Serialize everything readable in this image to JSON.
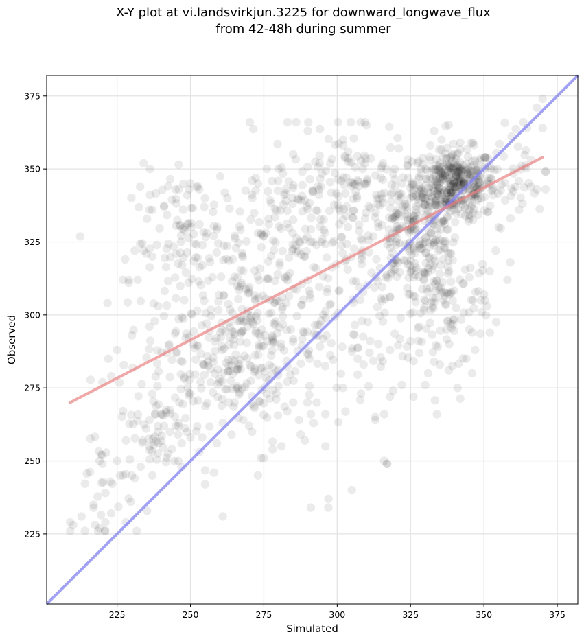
{
  "chart_data": {
    "type": "scatter",
    "title": "X-Y plot at vi.landsvirkjun.3225 for downward_longwave_flux",
    "subtitle": "from 42-48h during summer",
    "xlabel": "Simulated",
    "ylabel": "Observed",
    "xlim": [
      201,
      382
    ],
    "ylim": [
      201,
      382
    ],
    "xticks": [
      225,
      250,
      275,
      300,
      325,
      350,
      375
    ],
    "yticks": [
      225,
      250,
      275,
      300,
      325,
      350,
      375
    ],
    "grid": true,
    "legend": "none",
    "colors": {
      "points": "#000000",
      "regression_line": "#f08080",
      "identity_line": "#8080ff"
    },
    "regression_line": {
      "x": [
        209,
        370
      ],
      "y": [
        270,
        354
      ]
    },
    "identity_line": {
      "x": [
        201,
        382
      ],
      "y": [
        201,
        382
      ]
    },
    "clusters": [
      {
        "cx": 340,
        "cy": 345,
        "sx": 7,
        "sy": 6,
        "n": 380
      },
      {
        "cx": 326,
        "cy": 328,
        "sx": 8,
        "sy": 9,
        "n": 200
      },
      {
        "cx": 335,
        "cy": 305,
        "sx": 9,
        "sy": 12,
        "n": 120
      },
      {
        "cx": 262,
        "cy": 284,
        "sx": 12,
        "sy": 10,
        "n": 170
      },
      {
        "cx": 275,
        "cy": 300,
        "sx": 14,
        "sy": 12,
        "n": 130
      },
      {
        "cx": 250,
        "cy": 325,
        "sx": 10,
        "sy": 12,
        "n": 110
      },
      {
        "cx": 290,
        "cy": 330,
        "sx": 17,
        "sy": 15,
        "n": 200
      },
      {
        "cx": 305,
        "cy": 345,
        "sx": 10,
        "sy": 10,
        "n": 80
      },
      {
        "cx": 240,
        "cy": 265,
        "sx": 8,
        "sy": 10,
        "n": 70
      },
      {
        "cx": 220,
        "cy": 240,
        "sx": 7,
        "sy": 12,
        "n": 25
      },
      {
        "cx": 300,
        "cy": 290,
        "sx": 15,
        "sy": 18,
        "n": 90
      },
      {
        "cx": 360,
        "cy": 350,
        "sx": 6,
        "sy": 10,
        "n": 35
      }
    ],
    "points": [
      [
        209,
        229
      ],
      [
        210,
        228
      ],
      [
        214,
        226
      ],
      [
        219,
        227
      ],
      [
        221,
        229
      ],
      [
        221,
        239
      ],
      [
        223,
        232
      ],
      [
        217,
        235
      ],
      [
        217,
        234
      ],
      [
        219,
        250
      ],
      [
        220,
        252
      ],
      [
        220,
        249
      ],
      [
        225,
        250
      ],
      [
        226,
        245
      ],
      [
        227,
        245
      ],
      [
        228,
        257
      ],
      [
        228,
        229
      ],
      [
        230,
        245
      ],
      [
        231,
        244
      ],
      [
        233,
        248
      ],
      [
        237,
        245
      ],
      [
        220,
        277
      ],
      [
        222,
        285
      ],
      [
        223,
        279
      ],
      [
        225,
        288
      ],
      [
        227,
        312
      ],
      [
        229,
        312
      ],
      [
        231,
        322
      ],
      [
        232,
        312
      ],
      [
        234,
        322
      ],
      [
        235,
        321
      ],
      [
        236,
        296
      ],
      [
        237,
        336
      ],
      [
        237,
        320
      ],
      [
        239,
        303
      ],
      [
        230,
        293
      ],
      [
        242,
        287
      ],
      [
        261,
        231
      ],
      [
        305,
        240
      ],
      [
        297,
        237
      ],
      [
        291,
        234
      ],
      [
        297,
        234
      ],
      [
        296,
        255
      ],
      [
        317,
        249
      ],
      [
        316,
        250
      ],
      [
        317,
        249
      ],
      [
        292,
        263
      ],
      [
        293,
        270
      ],
      [
        264,
        259
      ],
      [
        255,
        242
      ],
      [
        258,
        246
      ],
      [
        368,
        371
      ],
      [
        370,
        374
      ],
      [
        370,
        364
      ],
      [
        371,
        343
      ],
      [
        368,
        343
      ],
      [
        371,
        349
      ],
      [
        366,
        344
      ],
      [
        362,
        336
      ],
      [
        358,
        312
      ],
      [
        359,
        318
      ],
      [
        334,
        266
      ],
      [
        326,
        272
      ],
      [
        330,
        276
      ],
      [
        316,
        266
      ],
      [
        318,
        272
      ],
      [
        313,
        265
      ],
      [
        313,
        264
      ],
      [
        290,
        363
      ],
      [
        310,
        365
      ],
      [
        302,
        360
      ],
      [
        333,
        363
      ],
      [
        338,
        365
      ],
      [
        321,
        357
      ],
      [
        280,
        350
      ],
      [
        285,
        355
      ],
      [
        253,
        343
      ],
      [
        246,
        343
      ],
      [
        250,
        345
      ],
      [
        236,
        336
      ],
      [
        241,
        337
      ],
      [
        229,
        311
      ],
      [
        248,
        330
      ],
      [
        249,
        331
      ],
      [
        271,
        346
      ],
      [
        276,
        350
      ],
      [
        248,
        278
      ],
      [
        250,
        273
      ],
      [
        251,
        290
      ],
      [
        245,
        287
      ],
      [
        265,
        313
      ],
      [
        243,
        260
      ],
      [
        239,
        256
      ],
      [
        241,
        262
      ],
      [
        239,
        260
      ],
      [
        238,
        266
      ],
      [
        237,
        273
      ],
      [
        236,
        255
      ],
      [
        236,
        264
      ],
      [
        238,
        266
      ],
      [
        240,
        266
      ],
      [
        247,
        256
      ],
      [
        250,
        258
      ],
      [
        253,
        253
      ],
      [
        254,
        258
      ],
      [
        259,
        256
      ],
      [
        261,
        263
      ],
      [
        263,
        270
      ],
      [
        265,
        270
      ],
      [
        268,
        264
      ],
      [
        270,
        262
      ],
      [
        271,
        260
      ],
      [
        273,
        245
      ],
      [
        274,
        251
      ],
      [
        275,
        251
      ],
      [
        278,
        254
      ],
      [
        281,
        255
      ],
      [
        283,
        267
      ],
      [
        285,
        270
      ],
      [
        287,
        264
      ],
      [
        289,
        257
      ],
      [
        291,
        266
      ],
      [
        296,
        266
      ],
      [
        302,
        275
      ],
      [
        307,
        285
      ],
      [
        309,
        283
      ],
      [
        311,
        287
      ],
      [
        314,
        290
      ],
      [
        318,
        288
      ],
      [
        322,
        276
      ],
      [
        325,
        291
      ],
      [
        328,
        287
      ],
      [
        331,
        280
      ],
      [
        333,
        284
      ],
      [
        335,
        283
      ],
      [
        338,
        281
      ],
      [
        341,
        275
      ],
      [
        344,
        285
      ],
      [
        346,
        280
      ],
      [
        347,
        288
      ],
      [
        345,
        295
      ],
      [
        349,
        305
      ],
      [
        350,
        307
      ],
      [
        351,
        303
      ],
      [
        352,
        315
      ],
      [
        354,
        322
      ],
      [
        355,
        330
      ],
      [
        346,
        294
      ]
    ]
  }
}
